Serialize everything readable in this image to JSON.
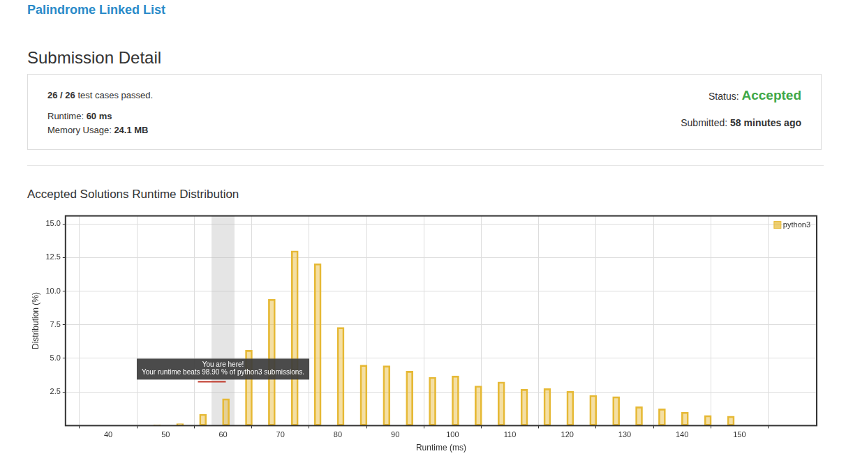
{
  "header": {
    "problem_title": "Palindrome Linked List",
    "page_title": "Submission Detail"
  },
  "detail": {
    "tests_passed": "26 / 26",
    "tests_text": "test cases passed.",
    "runtime_label": "Runtime:",
    "runtime": "60 ms",
    "memory_label": "Memory Usage:",
    "memory": "24.1 MB",
    "status_label": "Status:",
    "status": "Accepted",
    "submitted_label": "Submitted:",
    "submitted": "58 minutes ago"
  },
  "chart_data": {
    "type": "bar",
    "title": "Accepted Solutions Runtime Distribution",
    "x_label": "Runtime (ms)",
    "y_label": "Distribution (%)",
    "x": [
      48.5,
      52.5,
      56.5,
      60.5,
      64.5,
      68.5,
      72.5,
      76.5,
      80.5,
      84.5,
      88.5,
      92.5,
      96.5,
      100.5,
      104.5,
      108.5,
      112.5,
      116.5,
      120.5,
      124.5,
      128.5,
      132.5,
      136.5,
      140.5,
      144.5,
      148.5
    ],
    "series": [
      {
        "name": "python3",
        "color": "#e6b935",
        "values": [
          0.05,
          0.15,
          0.85,
          2.0,
          5.6,
          9.4,
          13.0,
          12.05,
          7.3,
          4.5,
          4.45,
          4.05,
          3.6,
          3.7,
          2.95,
          3.25,
          2.7,
          2.75,
          2.55,
          2.25,
          2.15,
          1.4,
          1.25,
          1.0,
          0.75,
          0.7
        ]
      }
    ],
    "xlim": [
      38,
      158
    ],
    "xticks": [
      40,
      50,
      60,
      70,
      80,
      90,
      100,
      110,
      120,
      130,
      140,
      150
    ],
    "ylim": [
      0,
      15.6
    ],
    "yticks": [
      2.5,
      {
        "value": 5,
        "label": "5.0"
      },
      7.5,
      {
        "value": 10,
        "label": "10.0"
      },
      12.5,
      {
        "value": 15,
        "label": "15.0"
      }
    ],
    "grid": true,
    "legend": "top-right",
    "highlight_range": [
      58,
      62
    ],
    "annotations": [
      "You are here!",
      "Your runtime beats 98.90 % of python3 submissions."
    ]
  }
}
